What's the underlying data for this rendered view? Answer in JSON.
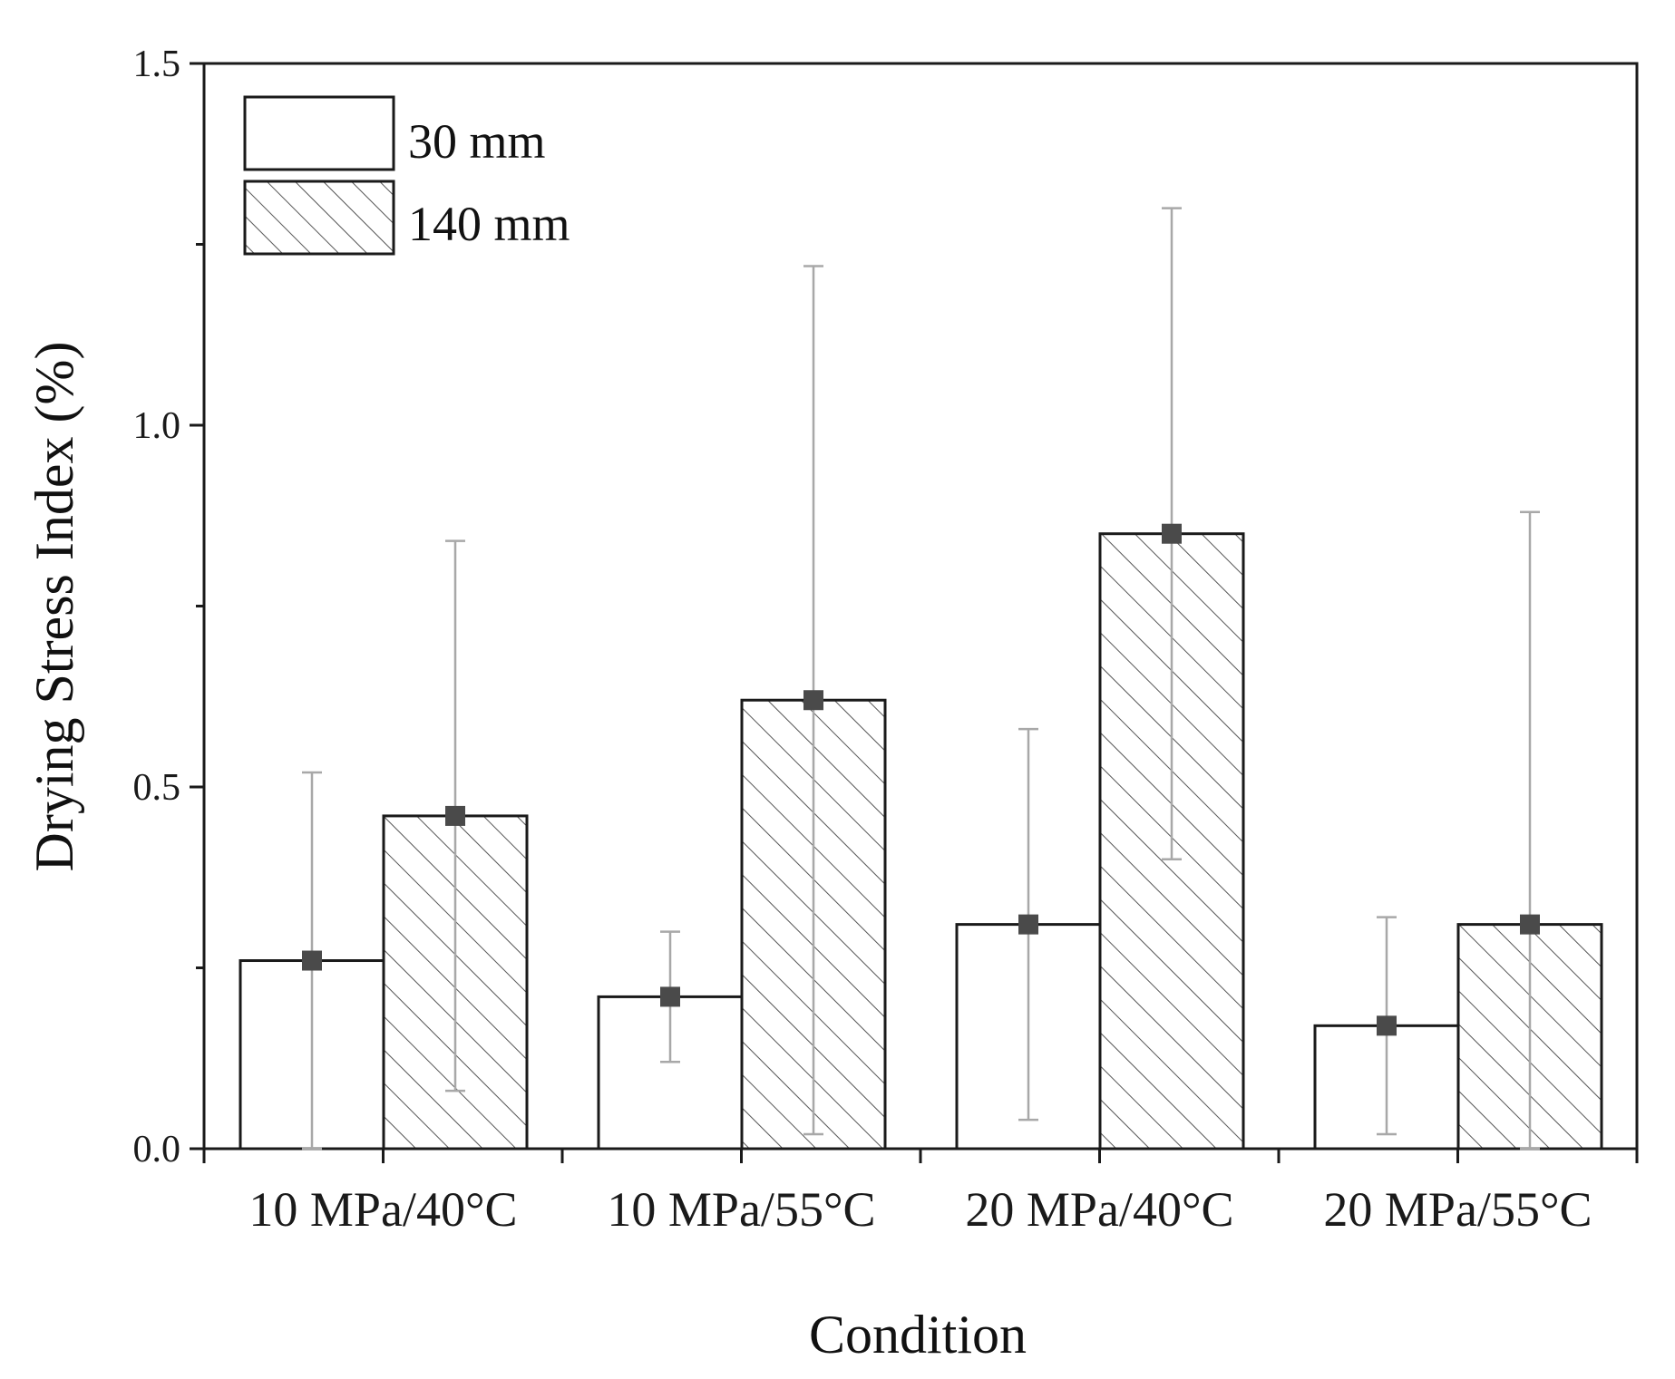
{
  "chart_data": {
    "type": "bar",
    "title": "",
    "xlabel": "Condition",
    "ylabel": "Drying Stress Index (%)",
    "ylim": [
      0,
      1.5
    ],
    "yticks": [
      0.0,
      0.5,
      1.0,
      1.5
    ],
    "ytick_labels": [
      "0.0",
      "0.5",
      "1.0",
      "1.5"
    ],
    "categories": [
      "10 MPa/40°C",
      "10 MPa/55°C",
      "20 MPa/40°C",
      "20 MPa/55°C"
    ],
    "series": [
      {
        "name": "30 mm",
        "pattern": "none",
        "values": [
          0.26,
          0.21,
          0.31,
          0.17
        ],
        "error_low": [
          0.0,
          0.12,
          0.04,
          0.02
        ],
        "error_high": [
          0.52,
          0.3,
          0.58,
          0.32
        ]
      },
      {
        "name": "140 mm",
        "pattern": "hatch",
        "values": [
          0.46,
          0.62,
          0.85,
          0.31
        ],
        "error_low": [
          0.08,
          0.02,
          0.4,
          0.0
        ],
        "error_high": [
          0.84,
          1.22,
          1.3,
          0.88
        ]
      }
    ],
    "legend_position": "top-left",
    "grid": false,
    "colors": {
      "bar_edge": "#1a1a1a",
      "bar_fill": "#ffffff",
      "hatch": "#555555",
      "error_bar": "#a8a8a8",
      "marker": "#4a4a4a",
      "axis": "#1a1a1a"
    }
  }
}
